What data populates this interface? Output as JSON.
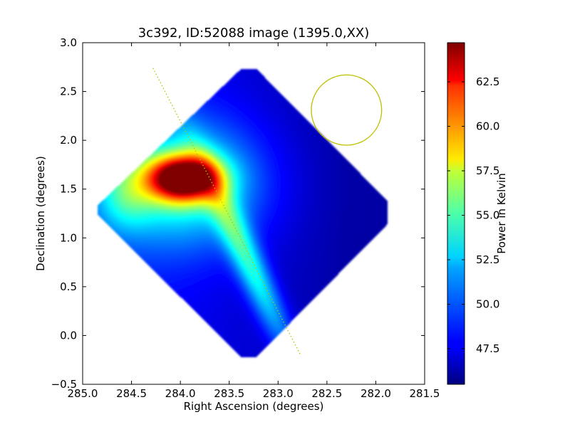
{
  "chart_data": {
    "type": "heatmap",
    "title": "3c392, ID:52088 image (1395.0,XX)",
    "xlabel": "Right Ascension (degrees)",
    "ylabel": "Declination (degrees)",
    "xlim": [
      285.0,
      281.5
    ],
    "ylim": [
      -0.5,
      3.0
    ],
    "x_ticks": [
      285.0,
      284.5,
      284.0,
      283.5,
      283.0,
      282.5,
      282.0,
      281.5
    ],
    "x_tick_labels": [
      "285.0",
      "284.5",
      "284.0",
      "283.5",
      "283.0",
      "282.5",
      "282.0",
      "281.5"
    ],
    "y_ticks": [
      -0.5,
      0.0,
      0.5,
      1.0,
      1.5,
      2.0,
      2.5,
      3.0
    ],
    "y_tick_labels": [
      "−0.5",
      "0.0",
      "0.5",
      "1.0",
      "1.5",
      "2.0",
      "2.5",
      "3.0"
    ],
    "colorbar": {
      "label": "Power in Kelvin",
      "range": [
        45.5,
        64.7
      ],
      "ticks": [
        47.5,
        50.0,
        52.5,
        55.0,
        57.5,
        60.0,
        62.5
      ],
      "tick_labels": [
        "47.5",
        "50.0",
        "52.5",
        "55.0",
        "57.5",
        "60.0",
        "62.5"
      ],
      "colormap": "jet"
    },
    "survey_footprint": {
      "shape": "octagon",
      "vertices_ra_dec": [
        [
          283.38,
          2.73
        ],
        [
          283.22,
          2.73
        ],
        [
          281.88,
          1.38
        ],
        [
          281.88,
          1.14
        ],
        [
          283.22,
          -0.22
        ],
        [
          283.38,
          -0.22
        ],
        [
          284.85,
          1.24
        ],
        [
          284.85,
          1.33
        ]
      ]
    },
    "emission_peak": {
      "ra": 283.97,
      "dec": 1.61,
      "value": 64.5
    },
    "features": {
      "dotted_line": {
        "color": "#bfbf00",
        "from": [
          284.28,
          2.74
        ],
        "to": [
          282.77,
          -0.2
        ]
      },
      "beam_circle": {
        "color": "#bfbf00",
        "center": [
          282.3,
          2.31
        ],
        "radius_deg": 0.36
      }
    },
    "grid": false
  }
}
